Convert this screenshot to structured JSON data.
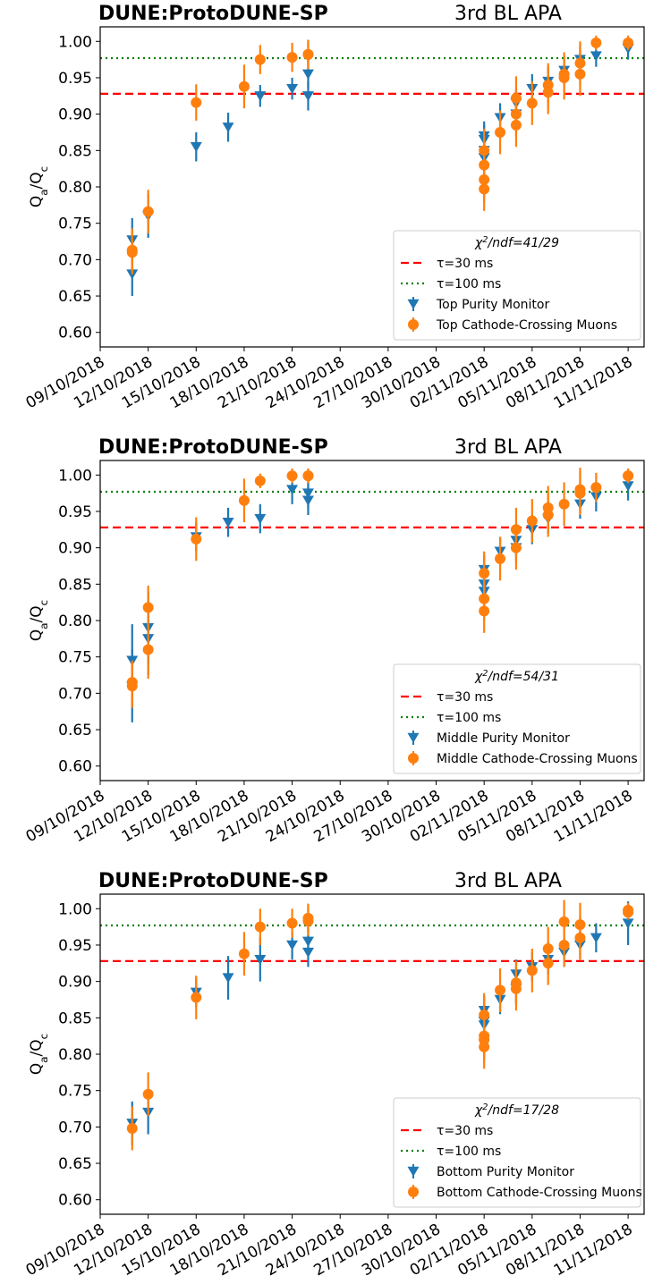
{
  "chart_data": [
    {
      "type": "scatter",
      "title_left": "DUNE:ProtoDUNE-SP",
      "title_right": "3rd BL APA",
      "ylabel": "Q_a/Q_c",
      "xlim": [
        "09/10/2018",
        "12/11/2018"
      ],
      "xticks": [
        "09/10/2018",
        "12/10/2018",
        "15/10/2018",
        "18/10/2018",
        "21/10/2018",
        "24/10/2018",
        "27/10/2018",
        "30/10/2018",
        "02/11/2018",
        "05/11/2018",
        "08/11/2018",
        "11/11/2018"
      ],
      "ylim": [
        0.58,
        1.02
      ],
      "yticks": [
        {
          "value": 0.6,
          "label": "0.60"
        },
        {
          "value": 0.65,
          "label": "0.65"
        },
        {
          "value": 0.7,
          "label": "0.70"
        },
        {
          "value": 0.75,
          "label": "0.75"
        },
        {
          "value": 0.8,
          "label": "0.80"
        },
        {
          "value": 0.85,
          "label": "0.85"
        },
        {
          "value": 0.9,
          "label": "0.90"
        },
        {
          "value": 0.95,
          "label": "0.95"
        },
        {
          "value": 1.0,
          "label": "1.00"
        }
      ],
      "legend_title": "χ^2/ndf=41/29",
      "legend_position": "lower right",
      "hlines": [
        {
          "name": "τ=30 ms",
          "value": 0.928,
          "color": "#ff0000",
          "style": "dashed"
        },
        {
          "name": "τ=100 ms",
          "value": 0.977,
          "color": "#008000",
          "style": "dotted"
        }
      ],
      "series": [
        {
          "name": "Top Purity Monitor",
          "color": "#1f77b4",
          "marker": "triangle-down",
          "x": [
            "11/10/2018",
            "11/10/2018",
            "12/10/2018",
            "15/10/2018",
            "17/10/2018",
            "19/10/2018",
            "21/10/2018",
            "22/10/2018",
            "22/10/2018",
            "02/11/2018",
            "02/11/2018",
            "02/11/2018",
            "02/11/2018",
            "03/11/2018",
            "04/11/2018",
            "04/11/2018",
            "05/11/2018",
            "06/11/2018",
            "07/11/2018",
            "08/11/2018",
            "09/11/2018",
            "11/11/2018"
          ],
          "values": [
            0.68,
            0.727,
            0.76,
            0.855,
            0.882,
            0.925,
            0.935,
            0.955,
            0.925,
            0.84,
            0.85,
            0.865,
            0.87,
            0.895,
            0.9,
            0.915,
            0.935,
            0.945,
            0.96,
            0.975,
            0.98,
            0.99
          ],
          "errors": [
            0.03,
            0.03,
            0.03,
            0.02,
            0.02,
            0.015,
            0.015,
            0.02,
            0.02,
            0.02,
            0.02,
            0.02,
            0.02,
            0.02,
            0.02,
            0.02,
            0.02,
            0.02,
            0.02,
            0.02,
            0.015,
            0.015
          ]
        },
        {
          "name": "Top Cathode-Crossing Muons",
          "color": "#ff7f0e",
          "marker": "circle",
          "x": [
            "11/10/2018",
            "11/10/2018",
            "12/10/2018",
            "15/10/2018",
            "18/10/2018",
            "19/10/2018",
            "21/10/2018",
            "22/10/2018",
            "22/10/2018",
            "02/11/2018",
            "02/11/2018",
            "02/11/2018",
            "02/11/2018",
            "03/11/2018",
            "04/11/2018",
            "04/11/2018",
            "04/11/2018",
            "05/11/2018",
            "06/11/2018",
            "06/11/2018",
            "07/11/2018",
            "07/11/2018",
            "08/11/2018",
            "08/11/2018",
            "09/11/2018",
            "11/11/2018"
          ],
          "values": [
            0.713,
            0.71,
            0.766,
            0.916,
            0.938,
            0.975,
            0.978,
            0.982,
            0.982,
            0.797,
            0.81,
            0.83,
            0.85,
            0.875,
            0.885,
            0.9,
            0.922,
            0.915,
            0.93,
            0.94,
            0.955,
            0.95,
            0.97,
            0.955,
            0.998,
            0.998
          ],
          "errors": [
            0.03,
            0.03,
            0.03,
            0.025,
            0.03,
            0.02,
            0.02,
            0.02,
            0.02,
            0.03,
            0.03,
            0.03,
            0.03,
            0.03,
            0.03,
            0.03,
            0.03,
            0.03,
            0.03,
            0.03,
            0.03,
            0.03,
            0.03,
            0.03,
            0.01,
            0.01
          ]
        }
      ]
    },
    {
      "type": "scatter",
      "title_left": "DUNE:ProtoDUNE-SP",
      "title_right": "3rd BL APA",
      "ylabel": "Q_a/Q_c",
      "xlim": [
        "09/10/2018",
        "12/11/2018"
      ],
      "xticks": [
        "09/10/2018",
        "12/10/2018",
        "15/10/2018",
        "18/10/2018",
        "21/10/2018",
        "24/10/2018",
        "27/10/2018",
        "30/10/2018",
        "02/11/2018",
        "05/11/2018",
        "08/11/2018",
        "11/11/2018"
      ],
      "ylim": [
        0.58,
        1.02
      ],
      "yticks": [
        {
          "value": 0.6,
          "label": "0.60"
        },
        {
          "value": 0.65,
          "label": "0.65"
        },
        {
          "value": 0.7,
          "label": "0.70"
        },
        {
          "value": 0.75,
          "label": "0.75"
        },
        {
          "value": 0.8,
          "label": "0.80"
        },
        {
          "value": 0.85,
          "label": "0.85"
        },
        {
          "value": 0.9,
          "label": "0.90"
        },
        {
          "value": 0.95,
          "label": "0.95"
        },
        {
          "value": 1.0,
          "label": "1.00"
        }
      ],
      "legend_title": "χ^2/ndf=54/31",
      "legend_position": "lower right",
      "hlines": [
        {
          "name": "τ=30 ms",
          "value": 0.928,
          "color": "#ff0000",
          "style": "dashed"
        },
        {
          "name": "τ=100 ms",
          "value": 0.977,
          "color": "#008000",
          "style": "dotted"
        }
      ],
      "series": [
        {
          "name": "Middle Purity Monitor",
          "color": "#1f77b4",
          "marker": "triangle-down",
          "x": [
            "11/10/2018",
            "11/10/2018",
            "12/10/2018",
            "12/10/2018",
            "15/10/2018",
            "17/10/2018",
            "19/10/2018",
            "21/10/2018",
            "22/10/2018",
            "22/10/2018",
            "02/11/2018",
            "02/11/2018",
            "02/11/2018",
            "03/11/2018",
            "04/11/2018",
            "04/11/2018",
            "05/11/2018",
            "06/11/2018",
            "08/11/2018",
            "09/11/2018",
            "11/11/2018"
          ],
          "values": [
            0.71,
            0.745,
            0.775,
            0.79,
            0.915,
            0.935,
            0.94,
            0.98,
            0.975,
            0.965,
            0.84,
            0.85,
            0.87,
            0.895,
            0.9,
            0.91,
            0.925,
            0.94,
            0.96,
            0.97,
            0.985
          ],
          "errors": [
            0.05,
            0.05,
            0.05,
            0.05,
            0.02,
            0.02,
            0.02,
            0.02,
            0.02,
            0.02,
            0.02,
            0.02,
            0.02,
            0.02,
            0.02,
            0.02,
            0.02,
            0.02,
            0.02,
            0.02,
            0.02
          ]
        },
        {
          "name": "Middle Cathode-Crossing Muons",
          "color": "#ff7f0e",
          "marker": "circle",
          "x": [
            "11/10/2018",
            "11/10/2018",
            "12/10/2018",
            "12/10/2018",
            "15/10/2018",
            "18/10/2018",
            "19/10/2018",
            "21/10/2018",
            "22/10/2018",
            "22/10/2018",
            "02/11/2018",
            "02/11/2018",
            "02/11/2018",
            "03/11/2018",
            "04/11/2018",
            "04/11/2018",
            "05/11/2018",
            "06/11/2018",
            "06/11/2018",
            "07/11/2018",
            "08/11/2018",
            "08/11/2018",
            "09/11/2018",
            "11/11/2018",
            "11/11/2018"
          ],
          "values": [
            0.715,
            0.71,
            0.76,
            0.818,
            0.912,
            0.965,
            0.992,
            0.999,
            0.999,
            0.999,
            0.813,
            0.83,
            0.865,
            0.885,
            0.9,
            0.925,
            0.937,
            0.945,
            0.955,
            0.96,
            0.975,
            0.98,
            0.983,
            0.999,
            0.999
          ],
          "errors": [
            0.03,
            0.03,
            0.04,
            0.03,
            0.03,
            0.03,
            0.01,
            0.01,
            0.01,
            0.01,
            0.03,
            0.03,
            0.03,
            0.03,
            0.03,
            0.03,
            0.03,
            0.03,
            0.03,
            0.03,
            0.03,
            0.03,
            0.02,
            0.01,
            0.01
          ]
        }
      ]
    },
    {
      "type": "scatter",
      "title_left": "DUNE:ProtoDUNE-SP",
      "title_right": "3rd BL APA",
      "ylabel": "Q_a/Q_c",
      "xlim": [
        "09/10/2018",
        "12/11/2018"
      ],
      "xticks": [
        "09/10/2018",
        "12/10/2018",
        "15/10/2018",
        "18/10/2018",
        "21/10/2018",
        "24/10/2018",
        "27/10/2018",
        "30/10/2018",
        "02/11/2018",
        "05/11/2018",
        "08/11/2018",
        "11/11/2018"
      ],
      "ylim": [
        0.58,
        1.02
      ],
      "yticks": [
        {
          "value": 0.6,
          "label": "0.60"
        },
        {
          "value": 0.65,
          "label": "0.65"
        },
        {
          "value": 0.7,
          "label": "0.70"
        },
        {
          "value": 0.75,
          "label": "0.75"
        },
        {
          "value": 0.8,
          "label": "0.80"
        },
        {
          "value": 0.85,
          "label": "0.85"
        },
        {
          "value": 0.9,
          "label": "0.90"
        },
        {
          "value": 0.95,
          "label": "0.95"
        },
        {
          "value": 1.0,
          "label": "1.00"
        }
      ],
      "legend_title": "χ^2/ndf=17/28",
      "legend_position": "lower right",
      "hlines": [
        {
          "name": "τ=30 ms",
          "value": 0.928,
          "color": "#ff0000",
          "style": "dashed"
        },
        {
          "name": "τ=100 ms",
          "value": 0.977,
          "color": "#008000",
          "style": "dotted"
        }
      ],
      "series": [
        {
          "name": "Bottom Purity Monitor",
          "color": "#1f77b4",
          "marker": "triangle-down",
          "x": [
            "11/10/2018",
            "12/10/2018",
            "15/10/2018",
            "17/10/2018",
            "19/10/2018",
            "21/10/2018",
            "22/10/2018",
            "22/10/2018",
            "02/11/2018",
            "02/11/2018",
            "02/11/2018",
            "03/11/2018",
            "04/11/2018",
            "04/11/2018",
            "05/11/2018",
            "06/11/2018",
            "07/11/2018",
            "08/11/2018",
            "09/11/2018",
            "11/11/2018"
          ],
          "values": [
            0.705,
            0.72,
            0.885,
            0.905,
            0.93,
            0.95,
            0.955,
            0.94,
            0.84,
            0.845,
            0.86,
            0.875,
            0.89,
            0.91,
            0.92,
            0.93,
            0.94,
            0.95,
            0.96,
            0.98
          ],
          "errors": [
            0.03,
            0.03,
            0.02,
            0.03,
            0.03,
            0.02,
            0.02,
            0.02,
            0.02,
            0.02,
            0.02,
            0.02,
            0.02,
            0.02,
            0.02,
            0.02,
            0.02,
            0.02,
            0.02,
            0.03
          ]
        },
        {
          "name": "Bottom Cathode-Crossing Muons",
          "color": "#ff7f0e",
          "marker": "circle",
          "x": [
            "11/10/2018",
            "12/10/2018",
            "15/10/2018",
            "18/10/2018",
            "19/10/2018",
            "21/10/2018",
            "22/10/2018",
            "22/10/2018",
            "02/11/2018",
            "02/11/2018",
            "02/11/2018",
            "02/11/2018",
            "03/11/2018",
            "04/11/2018",
            "04/11/2018",
            "05/11/2018",
            "06/11/2018",
            "06/11/2018",
            "07/11/2018",
            "07/11/2018",
            "08/11/2018",
            "08/11/2018",
            "11/11/2018",
            "11/11/2018"
          ],
          "values": [
            0.698,
            0.745,
            0.878,
            0.938,
            0.975,
            0.98,
            0.983,
            0.987,
            0.81,
            0.825,
            0.82,
            0.854,
            0.888,
            0.89,
            0.898,
            0.915,
            0.925,
            0.945,
            0.95,
            0.982,
            0.96,
            0.978,
            0.998,
            0.995
          ],
          "errors": [
            0.03,
            0.03,
            0.03,
            0.03,
            0.025,
            0.02,
            0.02,
            0.02,
            0.03,
            0.03,
            0.03,
            0.03,
            0.03,
            0.03,
            0.03,
            0.03,
            0.03,
            0.03,
            0.03,
            0.03,
            0.03,
            0.03,
            0.01,
            0.01
          ]
        }
      ]
    }
  ]
}
